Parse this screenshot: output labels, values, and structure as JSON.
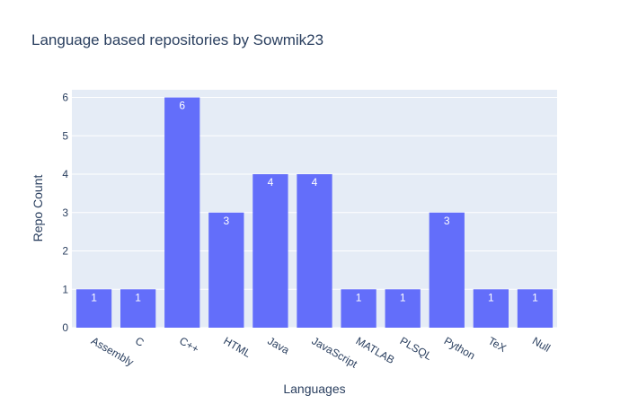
{
  "chart_data": {
    "type": "bar",
    "title": "Language based repositories by Sowmik23",
    "xlabel": "Languages",
    "ylabel": "Repo Count",
    "categories": [
      "Assembly",
      "C",
      "C++",
      "HTML",
      "Java",
      "JavaScript",
      "MATLAB",
      "PLSQL",
      "Python",
      "TeX",
      "Null"
    ],
    "values": [
      1,
      1,
      6,
      3,
      4,
      4,
      1,
      1,
      3,
      1,
      1
    ],
    "ylim": [
      0,
      6.2
    ],
    "yticks": [
      0,
      1,
      2,
      3,
      4,
      5,
      6
    ],
    "grid": true,
    "legend": "none",
    "colors": {
      "bar": "#636efa",
      "plot_background": "#e5ecf6",
      "gridline": "#ffffff",
      "text": "#2a3f5f",
      "bar_label": "#ffffff"
    }
  }
}
